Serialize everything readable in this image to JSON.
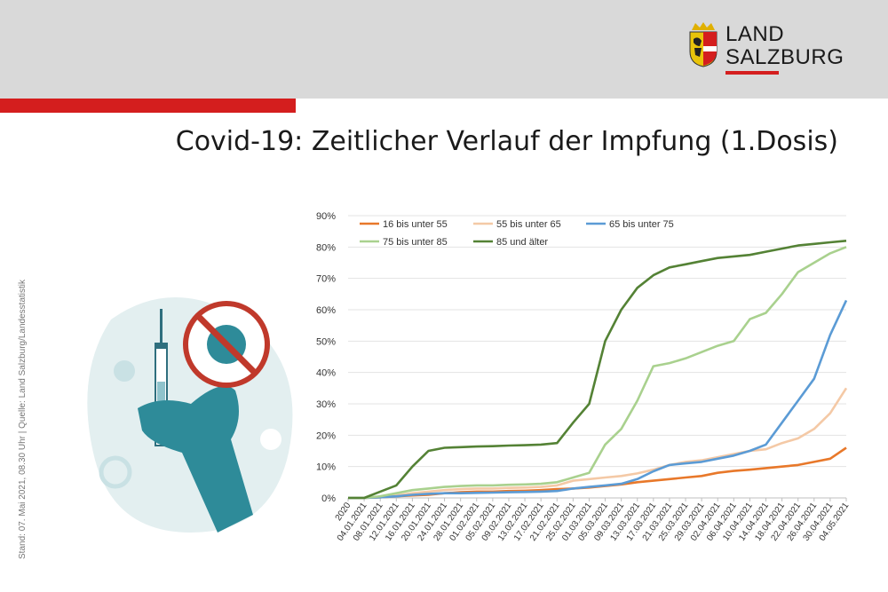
{
  "header": {
    "logo_line1": "LAND",
    "logo_line2": "SALZBURG",
    "accent_color": "#d41e1e"
  },
  "title": "Covid-19: Zeitlicher Verlauf der Impfung (1.Dosis)",
  "source_note": "Stand: 07. Mai  2021, 08.30 Uhr | Quelle: Land Salzburg/Landesstatistik",
  "illustration": {
    "icons": [
      "syringe-icon",
      "no-virus-icon",
      "hand-icon",
      "virus-icon"
    ]
  },
  "chart_data": {
    "type": "line",
    "ylim": [
      0,
      90
    ],
    "y_ticks": [
      "0%",
      "10%",
      "20%",
      "30%",
      "40%",
      "50%",
      "60%",
      "70%",
      "80%",
      "90%"
    ],
    "x_labels": [
      "2020",
      "04.01.2021",
      "08.01.2021",
      "12.01.2021",
      "16.01.2021",
      "20.01.2021",
      "24.01.2021",
      "28.01.2021",
      "01.02.2021",
      "05.02.2021",
      "09.02.2021",
      "13.02.2021",
      "17.02.2021",
      "21.02.2021",
      "25.02.2021",
      "01.03.2021",
      "05.03.2021",
      "09.03.2021",
      "13.03.2021",
      "17.03.2021",
      "21.03.2021",
      "25.03.2021",
      "29.03.2021",
      "02.04.2021",
      "06.04.2021",
      "10.04.2021",
      "14.04.2021",
      "18.04.2021",
      "22.04.2021",
      "26.04.2021",
      "30.04.2021",
      "04.05.2021"
    ],
    "series": [
      {
        "name": "16 bis unter 55",
        "color": "#e8782a",
        "values": [
          0,
          0,
          0.2,
          0.5,
          0.8,
          1,
          1.5,
          1.8,
          2,
          2,
          2.2,
          2.3,
          2.5,
          2.8,
          3,
          3.3,
          3.8,
          4.3,
          5,
          5.5,
          6,
          6.5,
          7,
          8,
          8.6,
          9,
          9.5,
          10,
          10.5,
          11.5,
          12.5,
          16
        ]
      },
      {
        "name": "55 bis unter 65",
        "color": "#f4c9a6",
        "values": [
          0,
          0,
          0.3,
          0.8,
          1.5,
          2,
          2.5,
          2.8,
          3,
          3,
          3.2,
          3.3,
          3.5,
          4,
          5.5,
          6,
          6.5,
          7,
          7.8,
          9,
          10.5,
          11.5,
          12,
          13,
          14,
          15,
          15.5,
          17.5,
          19,
          22,
          27,
          35
        ]
      },
      {
        "name": "65 bis unter 75",
        "color": "#5b9bd5",
        "values": [
          0,
          0,
          0.2,
          0.5,
          1,
          1.3,
          1.5,
          1.5,
          1.6,
          1.7,
          1.8,
          1.9,
          2,
          2.2,
          3,
          3.5,
          4,
          4.5,
          6,
          8.5,
          10.5,
          11,
          11.5,
          12.5,
          13.5,
          15,
          17,
          24,
          31,
          38,
          52,
          63
        ]
      },
      {
        "name": "75 bis unter 85",
        "color": "#a9d18e",
        "values": [
          0,
          0,
          0.5,
          1.5,
          2.5,
          3,
          3.5,
          3.8,
          4,
          4,
          4.2,
          4.3,
          4.5,
          5,
          6.5,
          8,
          17,
          22,
          31,
          42,
          43,
          44.5,
          46.5,
          48.5,
          50,
          57,
          59,
          65,
          72,
          75,
          78,
          80
        ]
      },
      {
        "name": "85 und älter",
        "color": "#548235",
        "values": [
          0,
          0,
          2,
          4,
          10,
          15,
          16,
          16.2,
          16.4,
          16.5,
          16.7,
          16.8,
          17,
          17.5,
          24,
          30,
          50,
          60,
          67,
          71,
          73.5,
          74.5,
          75.5,
          76.5,
          77,
          77.5,
          78.5,
          79.5,
          80.5,
          81,
          81.5,
          82
        ]
      }
    ]
  }
}
